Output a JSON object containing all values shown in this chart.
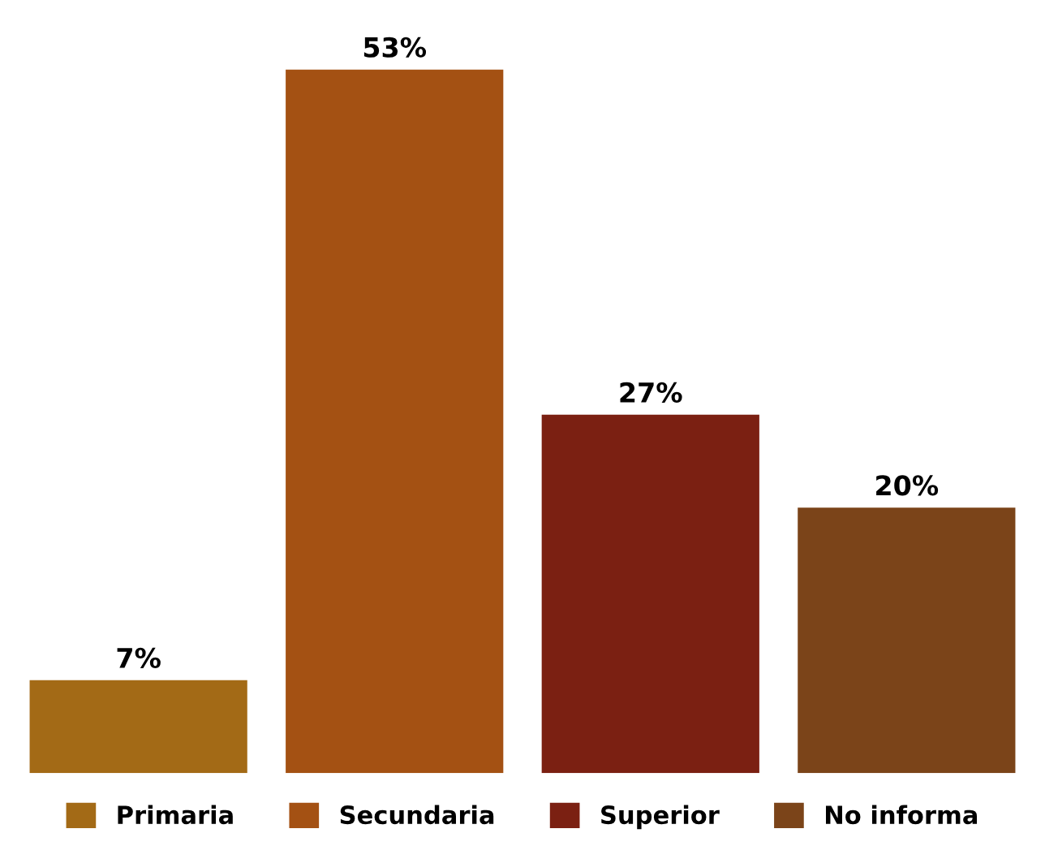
{
  "chart_data": {
    "type": "bar",
    "categories": [
      null,
      null,
      null,
      null
    ],
    "series": [
      {
        "name": "Primaria",
        "color": "#a36a16",
        "values": [
          7,
          null,
          null,
          null
        ],
        "value_labels": [
          "7%",
          null,
          null,
          null
        ]
      },
      {
        "name": "Secundaria",
        "color": "#a45113",
        "values": [
          null,
          53,
          null,
          null
        ],
        "value_labels": [
          null,
          "53%",
          null,
          null
        ]
      },
      {
        "name": "Superior",
        "color": "#7b2012",
        "values": [
          null,
          null,
          27,
          null
        ],
        "value_labels": [
          null,
          null,
          "27%",
          null
        ]
      },
      {
        "name": "No informa",
        "color": "#7b4419",
        "values": [
          null,
          null,
          null,
          20
        ],
        "value_labels": [
          null,
          null,
          null,
          "20%"
        ]
      }
    ],
    "stacked": true,
    "legend": "bottom",
    "tick_labels": false
  }
}
